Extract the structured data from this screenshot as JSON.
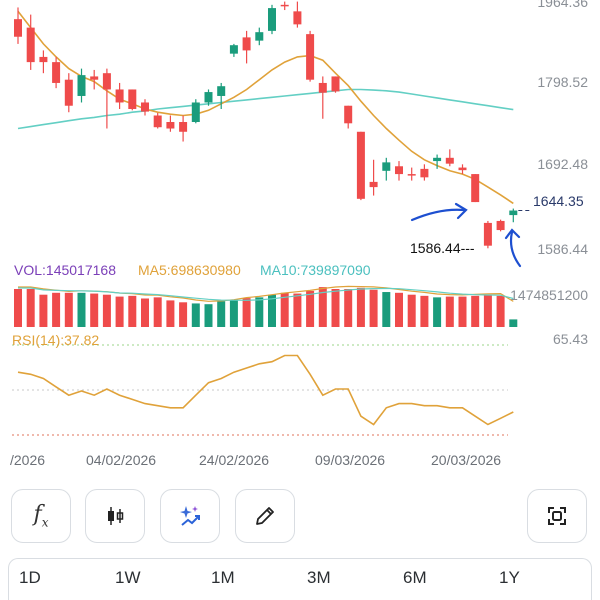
{
  "legend_top": {
    "vol_label": "VOL:145017168",
    "ma5_label": "MA5:698630980",
    "ma10_label": "MA10:739897090"
  },
  "rsi_label": "RSI(14):37.82",
  "price_axis": {
    "labels": [
      "1964.36",
      "1798.52",
      "1692.48",
      "1644.35",
      "1586.44"
    ]
  },
  "volume_axis_label": "1474851200",
  "rsi_axis_label": "65.43",
  "annotations": {
    "low": "1586.44---",
    "last": "1644.35"
  },
  "dates": [
    "/2026",
    "04/02/2026",
    "24/02/2026",
    "09/03/2026",
    "20/03/2026"
  ],
  "toolbar": {
    "buttons": [
      "fx-icon",
      "candlestick-icon",
      "sparkle-chart-icon",
      "pencil-icon",
      "fullscreen-icon"
    ]
  },
  "tabs": [
    "1D",
    "1W",
    "1M",
    "3M",
    "6M",
    "1Y"
  ],
  "colors": {
    "up": "#1a9c7c",
    "down": "#ef4b4b",
    "ma_short": "#e0a23a",
    "ma_long": "#63cfc4",
    "rsi": "#e0a23a",
    "vol_label": "#7b3fb8",
    "ma5_label": "#e0a23a",
    "ma10_label": "#4bc0bf",
    "annotation_blue": "#1d4fd0"
  },
  "chart_data": {
    "type": "candlestick",
    "price_levels": [
      1964.36,
      1798.52,
      1692.48,
      1644.35,
      1586.44
    ],
    "candles": [
      {
        "o": 1938,
        "h": 1956,
        "l": 1900,
        "c": 1911
      },
      {
        "o": 1925,
        "h": 1945,
        "l": 1860,
        "c": 1872
      },
      {
        "o": 1880,
        "h": 1890,
        "l": 1855,
        "c": 1872
      },
      {
        "o": 1872,
        "h": 1880,
        "l": 1832,
        "c": 1840
      },
      {
        "o": 1845,
        "h": 1855,
        "l": 1795,
        "c": 1805
      },
      {
        "o": 1820,
        "h": 1862,
        "l": 1810,
        "c": 1852
      },
      {
        "o": 1850,
        "h": 1860,
        "l": 1830,
        "c": 1845
      },
      {
        "o": 1855,
        "h": 1862,
        "l": 1770,
        "c": 1830
      },
      {
        "o": 1830,
        "h": 1840,
        "l": 1800,
        "c": 1810
      },
      {
        "o": 1830,
        "h": 1830,
        "l": 1798,
        "c": 1800
      },
      {
        "o": 1810,
        "h": 1815,
        "l": 1790,
        "c": 1796
      },
      {
        "o": 1790,
        "h": 1794,
        "l": 1770,
        "c": 1772
      },
      {
        "o": 1780,
        "h": 1790,
        "l": 1765,
        "c": 1770
      },
      {
        "o": 1780,
        "h": 1790,
        "l": 1750,
        "c": 1765
      },
      {
        "o": 1780,
        "h": 1815,
        "l": 1778,
        "c": 1810
      },
      {
        "o": 1810,
        "h": 1830,
        "l": 1805,
        "c": 1826
      },
      {
        "o": 1820,
        "h": 1840,
        "l": 1800,
        "c": 1835
      },
      {
        "o": 1885,
        "h": 1900,
        "l": 1880,
        "c": 1898
      },
      {
        "o": 1910,
        "h": 1920,
        "l": 1870,
        "c": 1890
      },
      {
        "o": 1905,
        "h": 1925,
        "l": 1898,
        "c": 1918
      },
      {
        "o": 1920,
        "h": 1960,
        "l": 1915,
        "c": 1955
      },
      {
        "o": 1960,
        "h": 1965,
        "l": 1952,
        "c": 1958
      },
      {
        "o": 1950,
        "h": 1965,
        "l": 1925,
        "c": 1930
      },
      {
        "o": 1915,
        "h": 1920,
        "l": 1842,
        "c": 1845
      },
      {
        "o": 1840,
        "h": 1850,
        "l": 1785,
        "c": 1825
      },
      {
        "o": 1850,
        "h": 1850,
        "l": 1825,
        "c": 1827
      },
      {
        "o": 1805,
        "h": 1805,
        "l": 1770,
        "c": 1778
      },
      {
        "o": 1765,
        "h": 1765,
        "l": 1660,
        "c": 1662
      },
      {
        "o": 1688,
        "h": 1722,
        "l": 1667,
        "c": 1680
      },
      {
        "o": 1705,
        "h": 1725,
        "l": 1690,
        "c": 1718
      },
      {
        "o": 1712,
        "h": 1720,
        "l": 1690,
        "c": 1700
      },
      {
        "o": 1700,
        "h": 1710,
        "l": 1690,
        "c": 1698
      },
      {
        "o": 1708,
        "h": 1715,
        "l": 1690,
        "c": 1695
      },
      {
        "o": 1720,
        "h": 1730,
        "l": 1708,
        "c": 1725
      },
      {
        "o": 1725,
        "h": 1738,
        "l": 1712,
        "c": 1716
      },
      {
        "o": 1710,
        "h": 1715,
        "l": 1700,
        "c": 1706
      },
      {
        "o": 1700,
        "h": 1700,
        "l": 1657,
        "c": 1657
      },
      {
        "o": 1625,
        "h": 1628,
        "l": 1586,
        "c": 1590
      },
      {
        "o": 1628,
        "h": 1630,
        "l": 1612,
        "c": 1614
      },
      {
        "o": 1637,
        "h": 1647,
        "l": 1626,
        "c": 1644
      }
    ],
    "ma_short": [
      1950,
      1925,
      1900,
      1880,
      1862,
      1850,
      1842,
      1828,
      1815,
      1808,
      1800,
      1795,
      1792,
      1790,
      1792,
      1798,
      1808,
      1818,
      1830,
      1845,
      1860,
      1872,
      1880,
      1882,
      1875,
      1855,
      1836,
      1812,
      1790,
      1770,
      1752,
      1735,
      1722,
      1713,
      1705,
      1700,
      1692,
      1680,
      1668,
      1655
    ],
    "ma_long": [
      1770,
      1773,
      1776,
      1779,
      1782,
      1785,
      1787,
      1790,
      1792,
      1795,
      1797,
      1800,
      1802,
      1804,
      1806,
      1808,
      1810,
      1812,
      1814,
      1816,
      1818,
      1820,
      1822,
      1824,
      1826,
      1828,
      1830,
      1830,
      1829,
      1828,
      1826,
      1823,
      1820,
      1817,
      1814,
      1811,
      1808,
      1805,
      1802,
      1799
    ],
    "volumes": [
      1,
      1,
      0.85,
      0.9,
      0.9,
      0.9,
      0.88,
      0.85,
      0.8,
      0.82,
      0.75,
      0.78,
      0.7,
      0.65,
      0.62,
      0.6,
      0.68,
      0.72,
      0.76,
      0.78,
      0.85,
      0.9,
      0.88,
      0.95,
      1.05,
      1.0,
      1.0,
      1.03,
      0.98,
      0.92,
      0.9,
      0.85,
      0.82,
      0.78,
      0.8,
      0.8,
      0.82,
      0.84,
      0.82,
      0.2
    ],
    "rsi": [
      55,
      54,
      52,
      48,
      44,
      46,
      44,
      47,
      44,
      42,
      40,
      39,
      38,
      38,
      44,
      50,
      52,
      55,
      57,
      59,
      60,
      63,
      63,
      54,
      44,
      47,
      47,
      34,
      30,
      38,
      40,
      40,
      39,
      39,
      38,
      38,
      34,
      30,
      33,
      36
    ],
    "rsi_levels": [
      70,
      50,
      30
    ],
    "dates": [
      "/2026",
      "04/02/2026",
      "24/02/2026",
      "09/03/2026",
      "20/03/2026"
    ]
  }
}
